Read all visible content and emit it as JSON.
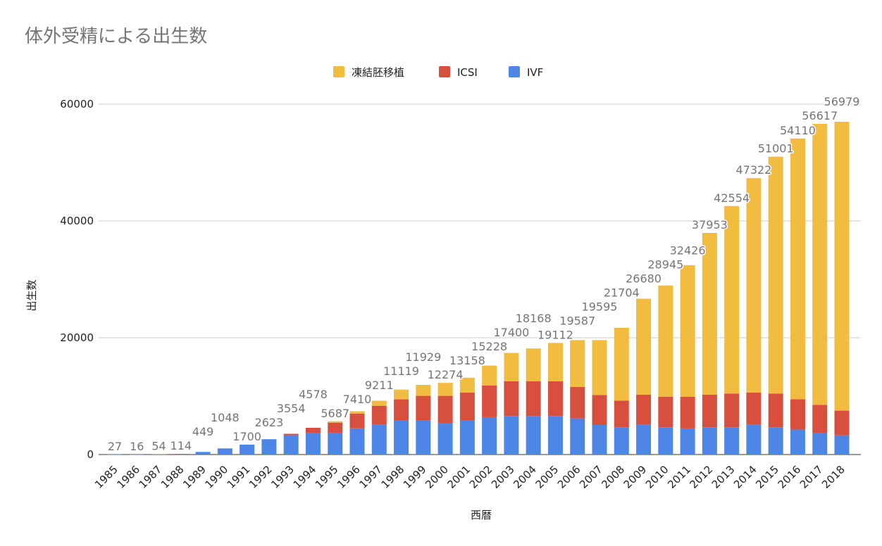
{
  "chart_data": {
    "type": "bar",
    "stacked": true,
    "title": "体外受精による出生数",
    "xlabel": "西暦",
    "ylabel": "出生数",
    "ylim": [
      0,
      60000
    ],
    "yticks": [
      0,
      20000,
      40000,
      60000
    ],
    "grid": true,
    "legend_position": "top",
    "categories": [
      "1985",
      "1986",
      "1987",
      "1988",
      "1989",
      "1990",
      "1991",
      "1992",
      "1993",
      "1994",
      "1995",
      "1996",
      "1997",
      "1998",
      "1999",
      "2000",
      "2001",
      "2002",
      "2003",
      "2004",
      "2005",
      "2006",
      "2007",
      "2008",
      "2009",
      "2010",
      "2011",
      "2012",
      "2013",
      "2014",
      "2015",
      "2016",
      "2017",
      "2018"
    ],
    "series": [
      {
        "name": "IVF",
        "color": "#4e86e8",
        "values": [
          27,
          16,
          54,
          114,
          449,
          1048,
          1700,
          2623,
          3300,
          3730,
          3730,
          4490,
          5100,
          5830,
          5830,
          5420,
          5830,
          6390,
          6590,
          6590,
          6590,
          6190,
          5060,
          4660,
          5080,
          4670,
          4470,
          4670,
          4670,
          5080,
          4670,
          4270,
          3660,
          3290
        ]
      },
      {
        "name": "ICSI",
        "color": "#d94f3d",
        "values": [
          0,
          0,
          0,
          0,
          0,
          0,
          0,
          0,
          254,
          848,
          1730,
          2530,
          3250,
          3620,
          4220,
          4630,
          4770,
          5420,
          5940,
          5940,
          5940,
          5380,
          5140,
          4580,
          5160,
          5210,
          5410,
          5570,
          5780,
          5530,
          5780,
          5200,
          4840,
          4230
        ]
      },
      {
        "name": "凍結胚移植",
        "color": "#f2bc41",
        "values": [
          0,
          0,
          0,
          0,
          0,
          0,
          0,
          0,
          0,
          0,
          227,
          390,
          861,
          1669,
          1879,
          2224,
          2558,
          3418,
          4870,
          5638,
          6582,
          8017,
          9395,
          12464,
          16440,
          19065,
          22546,
          27713,
          32104,
          36712,
          40551,
          44640,
          48117,
          49459
        ]
      }
    ],
    "totals": [
      27,
      16,
      54,
      114,
      449,
      1048,
      1700,
      2623,
      3554,
      4578,
      5687,
      7410,
      9211,
      11119,
      11929,
      12274,
      13158,
      15228,
      17400,
      18168,
      19112,
      19587,
      19595,
      21704,
      26680,
      28945,
      32426,
      37953,
      42554,
      47322,
      51001,
      54110,
      56617,
      56979
    ],
    "legend_order": [
      "凍結胚移植",
      "ICSI",
      "IVF"
    ]
  }
}
